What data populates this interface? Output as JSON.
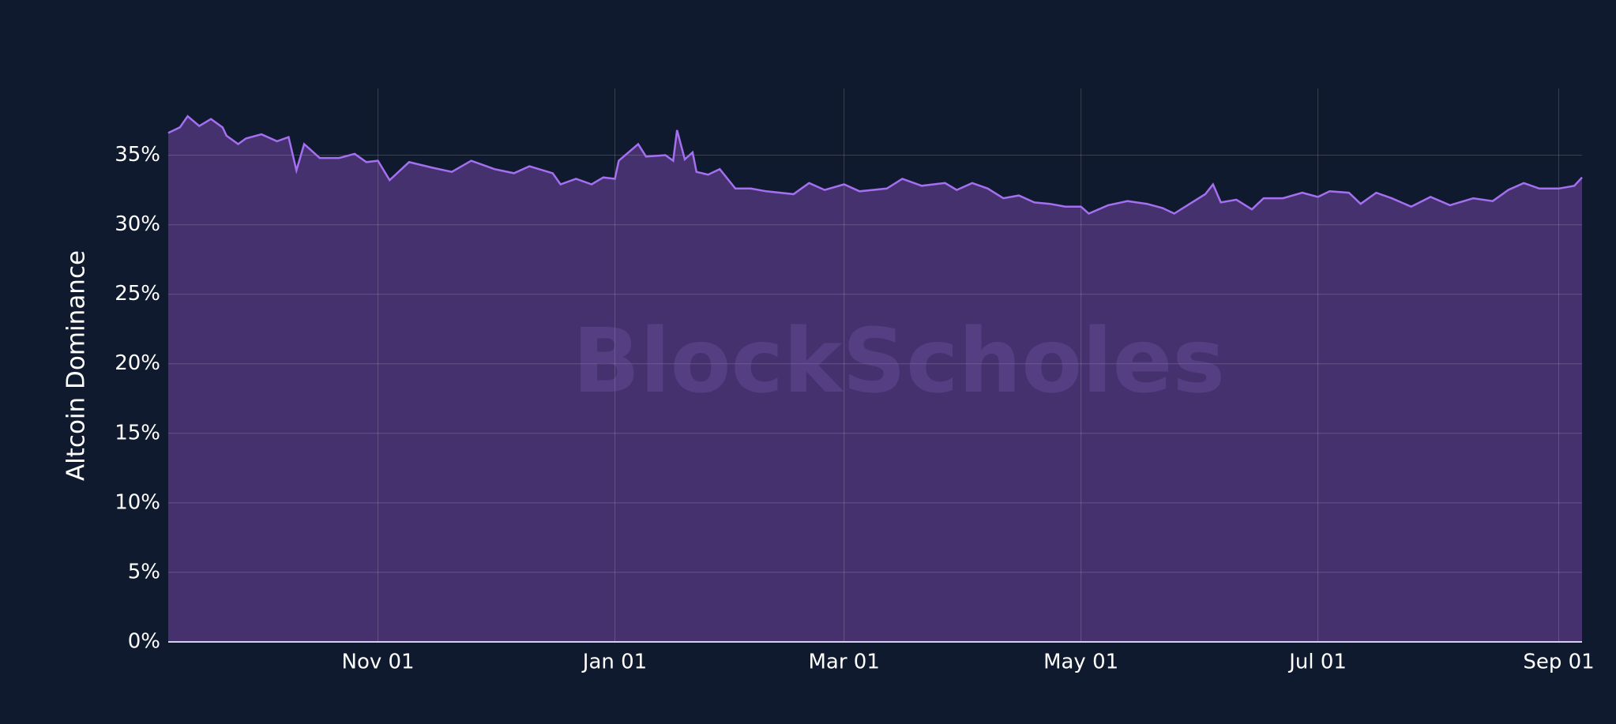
{
  "chart_data": {
    "type": "area",
    "y_label": "Altcoin Dominance",
    "watermark": "BlockScholes",
    "color": "#a46ff0",
    "fill": "#46316f",
    "grid": true,
    "ylim": [
      0,
      39.8
    ],
    "yticks": [
      {
        "value": 0,
        "label": "0%"
      },
      {
        "value": 5,
        "label": "5%"
      },
      {
        "value": 10,
        "label": "10%"
      },
      {
        "value": 15,
        "label": "15%"
      },
      {
        "value": 20,
        "label": "20%"
      },
      {
        "value": 25,
        "label": "25%"
      },
      {
        "value": 30,
        "label": "30%"
      },
      {
        "value": 35,
        "label": "35%"
      }
    ],
    "xticks": [
      "Nov 01",
      "Jan 01",
      "Mar 01",
      "May 01",
      "Jul 01",
      "Sep 01"
    ],
    "x": [
      "Sep 08",
      "Sep 11",
      "Sep 13",
      "Sep 16",
      "Sep 19",
      "Sep 22",
      "Sep 23",
      "Sep 26",
      "Sep 28",
      "Oct 02",
      "Oct 06",
      "Oct 09",
      "Oct 11",
      "Oct 13",
      "Oct 17",
      "Oct 22",
      "Oct 26",
      "Oct 29",
      "Nov 01",
      "Nov 04",
      "Nov 09",
      "Nov 15",
      "Nov 20",
      "Nov 25",
      "Dec 01",
      "Dec 06",
      "Dec 10",
      "Dec 16",
      "Dec 18",
      "Dec 22",
      "Dec 26",
      "Dec 29",
      "Jan 01",
      "Jan 02",
      "Jan 07",
      "Jan 09",
      "Jan 14",
      "Jan 16",
      "Jan 17",
      "Jan 19",
      "Jan 21",
      "Jan 22",
      "Jan 25",
      "Jan 28",
      "Feb 01",
      "Feb 05",
      "Feb 09",
      "Feb 16",
      "Feb 20",
      "Feb 24",
      "Mar 01",
      "Mar 05",
      "Mar 12",
      "Mar 16",
      "Mar 21",
      "Mar 27",
      "Mar 30",
      "Apr 03",
      "Apr 07",
      "Apr 11",
      "Apr 15",
      "Apr 19",
      "Apr 23",
      "Apr 27",
      "May 01",
      "May 03",
      "May 08",
      "May 13",
      "May 18",
      "May 22",
      "May 25",
      "May 29",
      "Jun 02",
      "Jun 04",
      "Jun 06",
      "Jun 10",
      "Jun 14",
      "Jun 17",
      "Jun 22",
      "Jun 27",
      "Jul 01",
      "Jul 04",
      "Jul 09",
      "Jul 12",
      "Jul 16",
      "Jul 20",
      "Jul 25",
      "Jul 30",
      "Aug 04",
      "Aug 10",
      "Aug 15",
      "Aug 19",
      "Aug 23",
      "Aug 27",
      "Sep 01",
      "Sep 05",
      "Sep 07"
    ],
    "values": [
      36.6,
      37.0,
      37.8,
      37.1,
      37.6,
      37.0,
      36.4,
      35.8,
      36.2,
      36.5,
      36.0,
      36.3,
      33.9,
      35.8,
      34.8,
      34.8,
      35.1,
      34.5,
      34.6,
      33.2,
      34.5,
      34.1,
      33.8,
      34.6,
      34.0,
      33.7,
      34.2,
      33.7,
      32.9,
      33.3,
      32.9,
      33.4,
      33.3,
      34.6,
      35.8,
      34.9,
      35.0,
      34.6,
      36.8,
      34.7,
      35.2,
      33.8,
      33.6,
      34.0,
      32.6,
      32.6,
      32.4,
      32.2,
      33.0,
      32.5,
      32.9,
      32.4,
      32.6,
      33.3,
      32.8,
      33.0,
      32.5,
      33.0,
      32.6,
      31.9,
      32.1,
      31.6,
      31.5,
      31.3,
      31.3,
      30.8,
      31.4,
      31.7,
      31.5,
      31.2,
      30.8,
      31.5,
      32.2,
      32.9,
      31.6,
      31.8,
      31.1,
      31.9,
      31.9,
      32.3,
      32.0,
      32.4,
      32.3,
      31.5,
      32.3,
      31.9,
      31.3,
      32.0,
      31.4,
      31.9,
      31.7,
      32.5,
      33.0,
      32.6,
      32.6,
      32.8,
      33.4
    ]
  }
}
